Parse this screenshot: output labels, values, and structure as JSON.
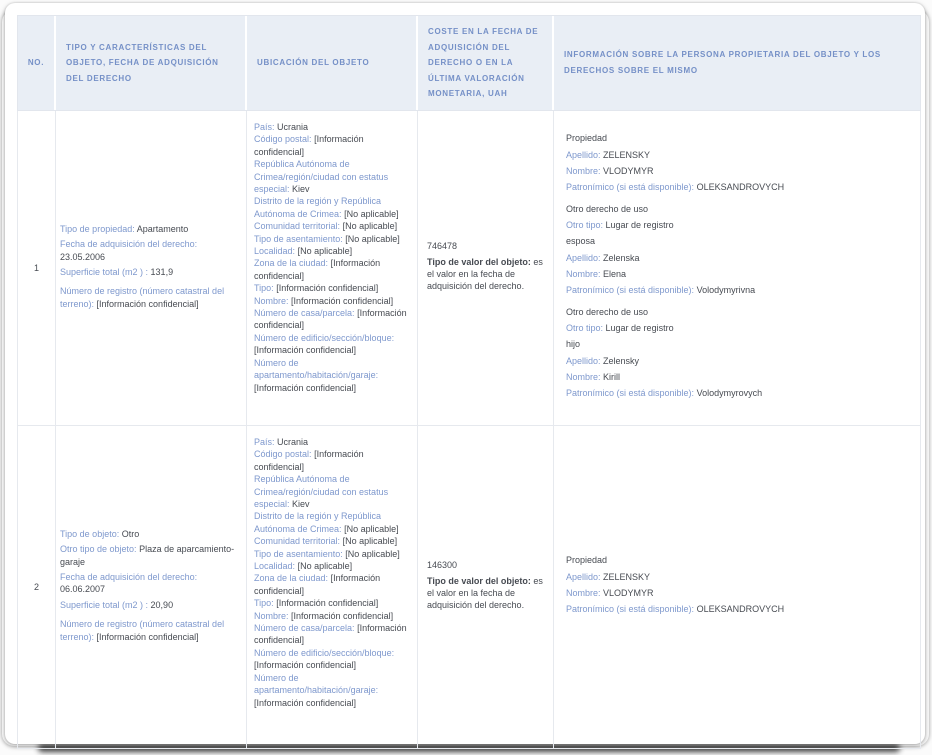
{
  "colors": {
    "header_bg": "#e9eef5",
    "header_text": "#7590c7",
    "label_text": "#7e98cd",
    "value_text": "#474b52",
    "border": "#e6e9ee",
    "page_shadow": "#141414"
  },
  "table": {
    "headers": [
      "NO.",
      "TIPO Y CARACTERÍSTICAS DEL OBJETO, FECHA DE ADQUISICIÓN DEL DERECHO",
      "UBICACIÓN DEL OBJETO",
      "COSTE EN LA FECHA DE ADQUISICIÓN DEL DERECHO O EN LA ÚLTIMA VALORACIÓN MONETARIA, UAH",
      "INFORMACIÓN SOBRE LA PERSONA PROPIETARIA DEL OBJETO Y LOS DERECHOS SOBRE EL MISMO"
    ],
    "rows": [
      {
        "no": "1",
        "tipo_caracteristicas": [
          {
            "label": "Tipo de propiedad:",
            "value": "Apartamento"
          },
          {
            "label": "Fecha de adquisición del derecho:",
            "value": "23.05.2006"
          },
          {
            "label": "Superficie total (m2 ) :",
            "value": "131,9"
          },
          {
            "label": "Número de registro (número catastral del terreno):",
            "value": "[Información confidencial]",
            "gap": true
          }
        ],
        "ubicacion": [
          {
            "label": "País:",
            "value": "Ucrania"
          },
          {
            "label": "Código postal:",
            "value": "[Información confidencial]"
          },
          {
            "label": "República Autónoma de Crimea/región/ciudad con estatus especial:",
            "value": "Kiev"
          },
          {
            "label": "Distrito de la región y República Autónoma de Crimea:",
            "value": "[No aplicable]"
          },
          {
            "label": "Comunidad territorial:",
            "value": "[No aplicable]"
          },
          {
            "label": "Tipo de asentamiento:",
            "value": "[No aplicable]"
          },
          {
            "label": "Localidad:",
            "value": "[No aplicable]"
          },
          {
            "label": "Zona de la ciudad:",
            "value": "[Información confidencial]"
          },
          {
            "label": "Tipo:",
            "value": "[Información confidencial]"
          },
          {
            "label": "Nombre:",
            "value": "[Información confidencial]"
          },
          {
            "label": "Número de casa/parcela:",
            "value": "[Información confidencial]"
          },
          {
            "label": "Número de edificio/sección/bloque:",
            "value": "[Información confidencial]"
          },
          {
            "label": "Número de apartamento/habitación/garaje:",
            "value": "[Información confidencial]"
          }
        ],
        "coste": {
          "importe": "746478",
          "tipo_label": "Tipo de valor del objeto:",
          "tipo_texto": "es el valor en la fecha de adquisición del derecho."
        },
        "propietarios": [
          {
            "titulo": "Propiedad",
            "campos": [
              {
                "label": "Apellido:",
                "value": "ZELENSKY"
              },
              {
                "label": "Nombre:",
                "value": "VLODYMYR"
              },
              {
                "label": "Patronímico (si está disponible):",
                "value": "OLEKSANDROVYCH"
              }
            ]
          },
          {
            "titulo": "Otro derecho de uso",
            "campos": [
              {
                "label": "Otro tipo:",
                "value": "Lugar de registro"
              },
              {
                "value": "esposa"
              },
              {
                "label": "Apellido:",
                "value": "Zelenska"
              },
              {
                "label": "Nombre:",
                "value": "Elena"
              },
              {
                "label": "Patronímico (si está disponible):",
                "value": "Volodymyrivna"
              }
            ]
          },
          {
            "titulo": "Otro derecho de uso",
            "campos": [
              {
                "label": "Otro tipo:",
                "value": "Lugar de registro"
              },
              {
                "value": "hijo"
              },
              {
                "label": "Apellido:",
                "value": "Zelensky"
              },
              {
                "label": "Nombre:",
                "value": "Kirill"
              },
              {
                "label": "Patronímico (si está disponible):",
                "value": "Volodymyrovych"
              }
            ]
          }
        ]
      },
      {
        "no": "2",
        "tipo_caracteristicas": [
          {
            "label": "Tipo de objeto:",
            "value": "Otro"
          },
          {
            "label": "Otro tipo de objeto:",
            "value": "Plaza de aparcamiento-garaje"
          },
          {
            "label": "Fecha de adquisición del derecho:",
            "value": "06.06.2007"
          },
          {
            "label": "Superficie total (m2 ) :",
            "value": "20,90"
          },
          {
            "label": "Número de registro (número catastral del terreno):",
            "value": "[Información confidencial]",
            "gap": true
          }
        ],
        "ubicacion": [
          {
            "label": "País:",
            "value": "Ucrania"
          },
          {
            "label": "Código postal:",
            "value": "[Información confidencial]"
          },
          {
            "label": "República Autónoma de Crimea/región/ciudad con estatus especial:",
            "value": "Kiev"
          },
          {
            "label": "Distrito de la región y República Autónoma de Crimea:",
            "value": "[No aplicable]"
          },
          {
            "label": "Comunidad territorial:",
            "value": "[No aplicable]"
          },
          {
            "label": "Tipo de asentamiento:",
            "value": "[No aplicable]"
          },
          {
            "label": "Localidad:",
            "value": "[No aplicable]"
          },
          {
            "label": "Zona de la ciudad:",
            "value": "[Información confidencial]"
          },
          {
            "label": "Tipo:",
            "value": "[Información confidencial]"
          },
          {
            "label": "Nombre:",
            "value": "[Información confidencial]"
          },
          {
            "label": "Número de casa/parcela:",
            "value": "[Información confidencial]"
          },
          {
            "label": "Número de edificio/sección/bloque:",
            "value": "[Información confidencial]"
          },
          {
            "label": "Número de apartamento/habitación/garaje:",
            "value": "[Información confidencial]"
          }
        ],
        "coste": {
          "importe": "146300",
          "tipo_label": "Tipo de valor del objeto:",
          "tipo_texto": "es el valor en la fecha de adquisición del derecho."
        },
        "propietarios": [
          {
            "titulo": "Propiedad",
            "campos": [
              {
                "label": "Apellido:",
                "value": "ZELENSKY"
              },
              {
                "label": "Nombre:",
                "value": "VLODYMYR"
              },
              {
                "label": "Patronímico (si está disponible):",
                "value": "OLEKSANDROVYCH"
              }
            ]
          }
        ]
      }
    ]
  }
}
